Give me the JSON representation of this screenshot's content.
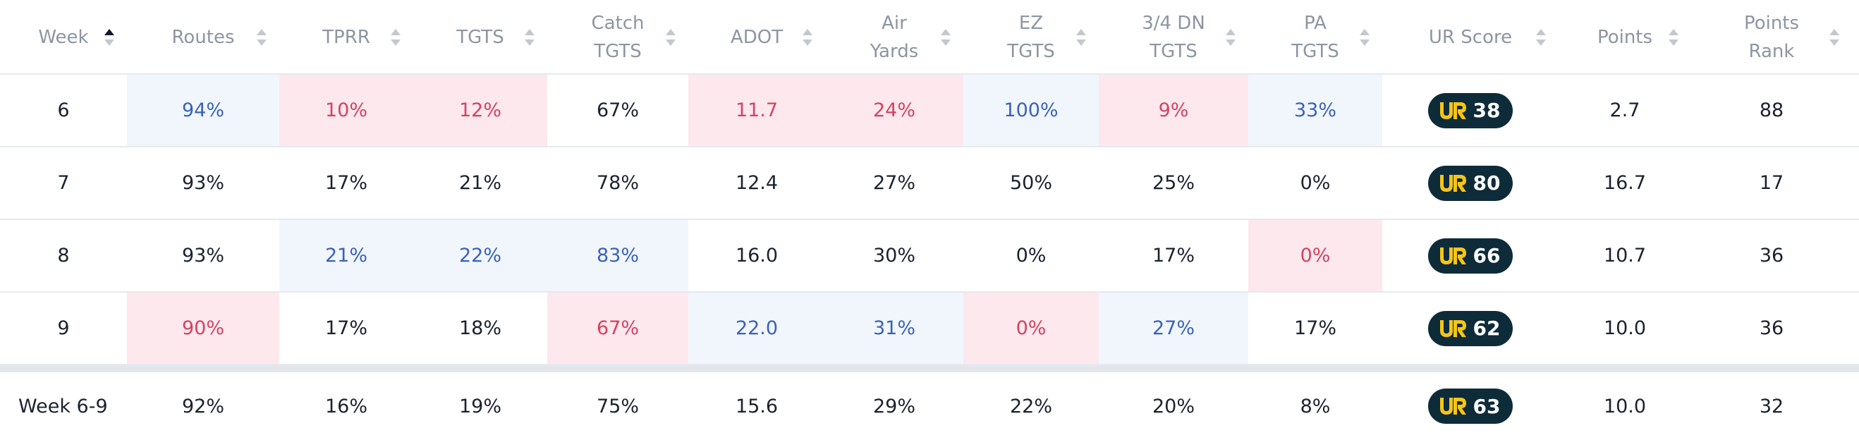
{
  "headers": [
    {
      "label": "Week",
      "sort": "asc"
    },
    {
      "label": "Routes",
      "sort": "none"
    },
    {
      "label": "TPRR",
      "sort": "none"
    },
    {
      "label": "TGTS",
      "sort": "none"
    },
    {
      "label": "Catch\nTGTS",
      "sort": "none"
    },
    {
      "label": "ADOT",
      "sort": "none"
    },
    {
      "label": "Air\nYards",
      "sort": "none"
    },
    {
      "label": "EZ\nTGTS",
      "sort": "none"
    },
    {
      "label": "3/4 DN\nTGTS",
      "sort": "none"
    },
    {
      "label": "PA\nTGTS",
      "sort": "none"
    },
    {
      "label": "UR Score",
      "sort": "none"
    },
    {
      "label": "Points",
      "sort": "none"
    },
    {
      "label": "Points\nRank",
      "sort": "none"
    }
  ],
  "rows": [
    {
      "week": "6",
      "routes": {
        "value": "94%",
        "tone": "good"
      },
      "tprr": {
        "value": "10%",
        "tone": "bad"
      },
      "tgts": {
        "value": "12%",
        "tone": "bad"
      },
      "catch_tgts": {
        "value": "67%",
        "tone": ""
      },
      "adot": {
        "value": "11.7",
        "tone": "bad"
      },
      "air_yards": {
        "value": "24%",
        "tone": "bad"
      },
      "ez_tgts": {
        "value": "100%",
        "tone": "good"
      },
      "dn_tgts": {
        "value": "9%",
        "tone": "bad"
      },
      "pa_tgts": {
        "value": "33%",
        "tone": "good"
      },
      "ur_score": "38",
      "points": "2.7",
      "points_rank": "88"
    },
    {
      "week": "7",
      "routes": {
        "value": "93%",
        "tone": ""
      },
      "tprr": {
        "value": "17%",
        "tone": ""
      },
      "tgts": {
        "value": "21%",
        "tone": ""
      },
      "catch_tgts": {
        "value": "78%",
        "tone": ""
      },
      "adot": {
        "value": "12.4",
        "tone": ""
      },
      "air_yards": {
        "value": "27%",
        "tone": ""
      },
      "ez_tgts": {
        "value": "50%",
        "tone": ""
      },
      "dn_tgts": {
        "value": "25%",
        "tone": ""
      },
      "pa_tgts": {
        "value": "0%",
        "tone": ""
      },
      "ur_score": "80",
      "points": "16.7",
      "points_rank": "17"
    },
    {
      "week": "8",
      "routes": {
        "value": "93%",
        "tone": ""
      },
      "tprr": {
        "value": "21%",
        "tone": "good"
      },
      "tgts": {
        "value": "22%",
        "tone": "good"
      },
      "catch_tgts": {
        "value": "83%",
        "tone": "good"
      },
      "adot": {
        "value": "16.0",
        "tone": ""
      },
      "air_yards": {
        "value": "30%",
        "tone": ""
      },
      "ez_tgts": {
        "value": "0%",
        "tone": ""
      },
      "dn_tgts": {
        "value": "17%",
        "tone": ""
      },
      "pa_tgts": {
        "value": "0%",
        "tone": "bad"
      },
      "ur_score": "66",
      "points": "10.7",
      "points_rank": "36"
    },
    {
      "week": "9",
      "routes": {
        "value": "90%",
        "tone": "bad"
      },
      "tprr": {
        "value": "17%",
        "tone": ""
      },
      "tgts": {
        "value": "18%",
        "tone": ""
      },
      "catch_tgts": {
        "value": "67%",
        "tone": "bad"
      },
      "adot": {
        "value": "22.0",
        "tone": "good"
      },
      "air_yards": {
        "value": "31%",
        "tone": "good"
      },
      "ez_tgts": {
        "value": "0%",
        "tone": "bad"
      },
      "dn_tgts": {
        "value": "27%",
        "tone": "good"
      },
      "pa_tgts": {
        "value": "17%",
        "tone": ""
      },
      "ur_score": "62",
      "points": "10.0",
      "points_rank": "36"
    }
  ],
  "total": {
    "week": "Week 6-9",
    "routes": "92%",
    "tprr": "16%",
    "tgts": "19%",
    "catch_tgts": "75%",
    "adot": "15.6",
    "air_yards": "29%",
    "ez_tgts": "22%",
    "dn_tgts": "20%",
    "pa_tgts": "8%",
    "ur_score": "63",
    "points": "10.0",
    "points_rank": "32"
  },
  "colors": {
    "good_bg": "#f1f6fd",
    "good_text": "#3a62b8",
    "bad_bg": "#fde8ee",
    "bad_text": "#d24363",
    "badge_bg": "#0e2b3a",
    "badge_logo": "#f5c518",
    "header_text": "#8d95a3"
  },
  "icons": {
    "sort": "sort-arrows-icon",
    "badge_logo": "ur-logo-icon"
  }
}
